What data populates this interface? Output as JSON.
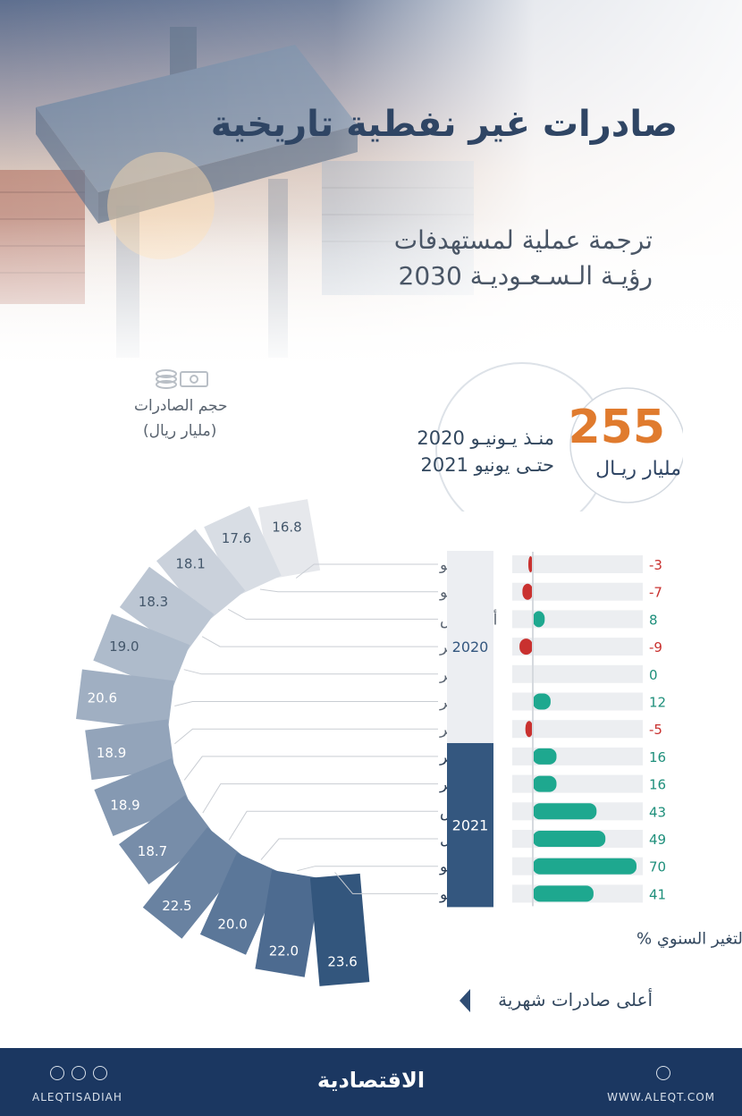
{
  "header": {
    "title": "صادرات غير نفطية تاريخية",
    "subtitle_line1": "ترجمة عملية لمستهدفات",
    "subtitle_line2": "رؤيـة الـسـعـوديـة 2030"
  },
  "callout": {
    "value": "255",
    "unit": "مليار ريـال",
    "period_line1": "منـذ يـونيـو 2020",
    "period_line2": "حتـى يونيو 2021"
  },
  "volume_label": {
    "line1": "حجم الصادرات",
    "line2": "(مليار ريال)"
  },
  "chart_data": {
    "type": "bar",
    "categories": [
      "يونيو",
      "يوليو",
      "أغسطس",
      "سبتمبر",
      "أكتوبر",
      "نوفمبر",
      "ديسمبر",
      "يناير",
      "فبراير",
      "مارس",
      "أبريل",
      "مايو",
      "يونيو"
    ],
    "years": [
      {
        "label": "2020",
        "from": 0,
        "to": 6
      },
      {
        "label": "2021",
        "from": 7,
        "to": 12
      }
    ],
    "series": [
      {
        "values": [
          16.8,
          17.6,
          18.1,
          18.3,
          19.0,
          20.6,
          18.9,
          18.9,
          18.7,
          22.5,
          20.0,
          22.0,
          23.6
        ]
      },
      {
        "values": [
          -3,
          -7,
          8,
          -9,
          0,
          12,
          -5,
          16,
          16,
          43,
          49,
          70,
          41
        ],
        "display": [
          "-3",
          "-7",
          "8",
          "-9",
          "0",
          "12",
          "-5",
          "16",
          "16",
          "43",
          "49",
          "70",
          "41"
        ]
      }
    ],
    "xlabel": "التغير السنوي %",
    "highest_index": 12
  },
  "legend": {
    "highest_label": "أعلى صادرات شهرية"
  },
  "footer": {
    "brand": "الاقتصادية",
    "handle": "ALEQTISADIAH",
    "website": "WWW.ALEQT.COM"
  },
  "colors": {
    "navy": "#33567d",
    "light_bar": "#e9ebee",
    "positive": "#1ea88f",
    "negative": "#c9312f",
    "accent": "#e07b2e"
  }
}
